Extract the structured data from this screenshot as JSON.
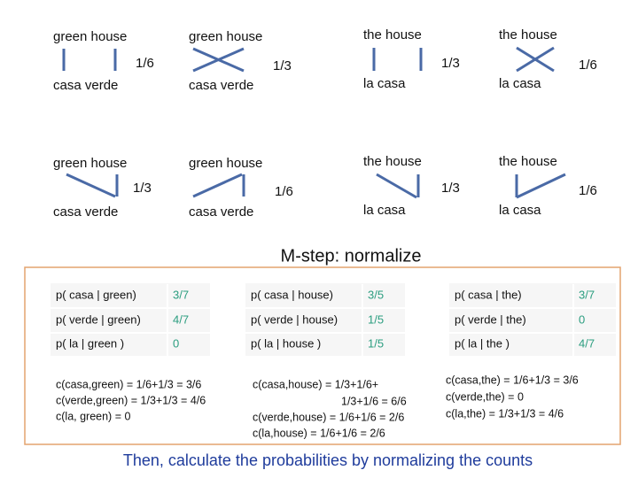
{
  "diagrams": [
    {
      "top": "green house",
      "bottom": "casa  verde",
      "weight": "1/6"
    },
    {
      "top": "green house",
      "bottom": "casa  verde",
      "weight": "1/3"
    },
    {
      "top": "the house",
      "bottom": "la       casa",
      "weight": "1/3"
    },
    {
      "top": "the house",
      "bottom": "la       casa",
      "weight": "1/6"
    },
    {
      "top": "green house",
      "bottom": "casa  verde",
      "weight": "1/3"
    },
    {
      "top": "green house",
      "bottom": "casa  verde",
      "weight": "1/6"
    },
    {
      "top": "the house",
      "bottom": "la       casa",
      "weight": "1/3"
    },
    {
      "top": "the house",
      "bottom": "la       casa",
      "weight": "1/6"
    }
  ],
  "heading": "M-step: normalize",
  "tables": [
    {
      "rows": [
        [
          "p( casa | green)",
          "3/7"
        ],
        [
          "p( verde | green)",
          "4/7"
        ],
        [
          "p( la | green )",
          "0"
        ]
      ]
    },
    {
      "rows": [
        [
          "p( casa | house)",
          "3/5"
        ],
        [
          "p( verde | house)",
          "1/5"
        ],
        [
          "p( la | house )",
          "1/5"
        ]
      ]
    },
    {
      "rows": [
        [
          "p( casa | the)",
          "3/7"
        ],
        [
          "p( verde | the)",
          "0"
        ],
        [
          "p( la | the )",
          "4/7"
        ]
      ]
    }
  ],
  "counts": [
    [
      "c(casa,green) = 1/6+1/3 = 3/6",
      "c(verde,green) = 1/3+1/3 = 4/6",
      "c(la, green) = 0"
    ],
    [
      "c(casa,house) = 1/3+1/6+",
      "1/3+1/6 = 6/6",
      "c(verde,house) = 1/6+1/6 = 2/6",
      "c(la,house) = 1/6+1/6 = 2/6"
    ],
    [
      "c(casa,the) = 1/6+1/3 = 3/6",
      "c(verde,the) = 0",
      "c(la,the) = 1/3+1/3 = 4/6"
    ]
  ],
  "footer": "Then, calculate the probabilities by normalizing the counts"
}
